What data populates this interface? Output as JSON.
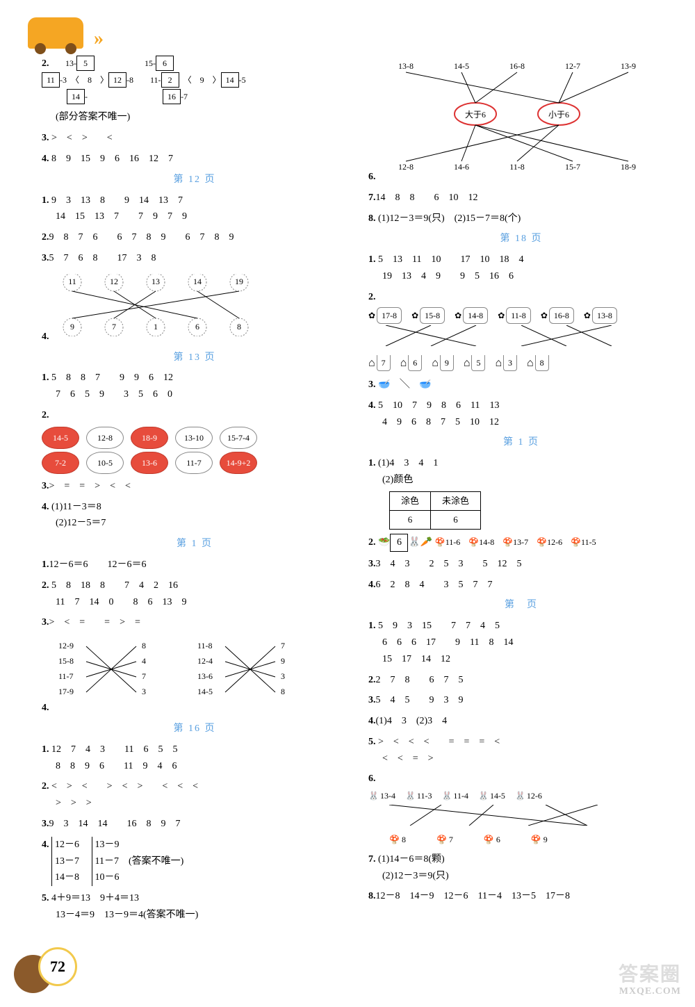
{
  "page_number": "72",
  "watermark": {
    "big": "答案圈",
    "small": "MXQE.COM"
  },
  "left": {
    "q2": {
      "num": "2.",
      "top": [
        "13-",
        "5"
      ],
      "mids": [
        [
          "11",
          "-3",
          "8",
          "12",
          "-8",
          "11-",
          "2",
          "9",
          "14",
          "-5",
          "15-",
          "6"
        ],
        [
          "14",
          "-",
          "",
          "",
          "",
          "",
          "",
          "",
          "16",
          "-7"
        ]
      ],
      "note": "(部分答案不唯一)"
    },
    "q3": {
      "num": "3.",
      "vals": [
        ">",
        "<",
        ">",
        "<"
      ]
    },
    "q4": {
      "num": "4.",
      "vals": [
        "8",
        "9",
        "15",
        "9",
        "6",
        "16",
        "12",
        "7"
      ]
    },
    "ph12": "第 12 页",
    "p12_1": {
      "num": "1.",
      "r1": [
        "9",
        "3",
        "13",
        "8",
        "",
        "9",
        "14",
        "13",
        "7"
      ],
      "r2": [
        "14",
        "15",
        "13",
        "7",
        "",
        "7",
        "9",
        "7",
        "9"
      ]
    },
    "p12_2": {
      "num": "2.",
      "vals": [
        "9",
        "8",
        "7",
        "6",
        "",
        "6",
        "7",
        "8",
        "9",
        "",
        "6",
        "7",
        "8",
        "9"
      ]
    },
    "p12_3": {
      "num": "3.",
      "vals": [
        "5",
        "7",
        "6",
        "8",
        "",
        "17",
        "3",
        "8"
      ]
    },
    "p12_4": {
      "num": "4.",
      "top": [
        "11",
        "12",
        "13",
        "14",
        "19"
      ],
      "bot": [
        "9",
        "7",
        "1",
        "6",
        "8"
      ]
    },
    "ph13": "第 13 页",
    "p13_1": {
      "num": "1.",
      "r1": [
        "5",
        "8",
        "8",
        "7",
        "",
        "9",
        "9",
        "6",
        "12"
      ],
      "r2": [
        "7",
        "6",
        "5",
        "9",
        "",
        "3",
        "5",
        "6",
        "0"
      ]
    },
    "p13_2": {
      "num": "2.",
      "row1": [
        {
          "t": "14-5",
          "red": true
        },
        {
          "t": "12-8"
        },
        {
          "t": "18-9",
          "red": true
        },
        {
          "t": "13-10"
        },
        {
          "t": "15-7-4"
        }
      ],
      "row2": [
        {
          "t": "7-2",
          "red": true
        },
        {
          "t": "10-5"
        },
        {
          "t": "13-6",
          "red": true
        },
        {
          "t": "11-7"
        },
        {
          "t": "14-9+2",
          "red": true
        }
      ]
    },
    "p13_3": {
      "num": "3.",
      "vals": [
        ">",
        "=",
        "=",
        ">",
        "<",
        "<"
      ]
    },
    "p13_4": {
      "num": "4.",
      "a": "(1)11－3＝8",
      "b": "(2)12－5＝7"
    },
    "ph14": "第 1  页",
    "p14_1": {
      "num": "1.",
      "vals": [
        "12－6＝6",
        "",
        "12－6＝6"
      ]
    },
    "p14_2": {
      "num": "2.",
      "r1": [
        "5",
        "8",
        "18",
        "8",
        "",
        "7",
        "4",
        "2",
        "16"
      ],
      "r2": [
        "11",
        "7",
        "14",
        "0",
        "",
        "8",
        "6",
        "13",
        "9"
      ]
    },
    "p14_3": {
      "num": "3.",
      "vals": [
        ">",
        "<",
        "=",
        "",
        "=",
        ">",
        "="
      ]
    },
    "p14_4": {
      "num": "4.",
      "left": [
        [
          "12-9",
          "8"
        ],
        [
          "15-8",
          "4"
        ],
        [
          "11-7",
          "7"
        ],
        [
          "17-9",
          "3"
        ]
      ],
      "right": [
        [
          "11-8",
          "7"
        ],
        [
          "12-4",
          "9"
        ],
        [
          "13-6",
          "3"
        ],
        [
          "14-5",
          "8"
        ]
      ]
    },
    "ph16": "第 16 页",
    "p16_1": {
      "num": "1.",
      "r1": [
        "12",
        "7",
        "4",
        "3",
        "",
        "11",
        "6",
        "5",
        "5"
      ],
      "r2": [
        "8",
        "8",
        "9",
        "6",
        "",
        "11",
        "9",
        "4",
        "6"
      ]
    },
    "p16_2": {
      "num": "2.",
      "r1": [
        "<",
        ">",
        "<",
        "",
        ">",
        "<",
        ">",
        "",
        "<",
        "<",
        "<"
      ],
      "r2": [
        ">",
        ">",
        ">"
      ]
    },
    "p16_3": {
      "num": "3.",
      "vals": [
        "9",
        "3",
        "14",
        "14",
        "",
        "16",
        "8",
        "9",
        "7"
      ]
    },
    "p16_4": {
      "num": "4.",
      "left": [
        "12－6",
        "13－7",
        "14－8"
      ],
      "right": [
        "13－9",
        "11－7",
        "10－6"
      ],
      "note": "(答案不唯一)"
    },
    "p16_5": {
      "num": "5.",
      "a": "4＋9＝13　9＋4＝13",
      "b": "13－4＝9　13－9＝4(答案不唯一)"
    }
  },
  "right": {
    "q6": {
      "num": "6.",
      "top": [
        "13-8",
        "14-5",
        "16-8",
        "12-7",
        "13-9"
      ],
      "mid": [
        "大于6",
        "小于6"
      ],
      "bot": [
        "12-8",
        "14-6",
        "11-8",
        "15-7",
        "18-9"
      ]
    },
    "q7": {
      "num": "7.",
      "vals": [
        "14",
        "8",
        "8",
        "",
        "6",
        "10",
        "12"
      ]
    },
    "q8": {
      "num": "8.",
      "a": "(1)12－3＝9(只)",
      "b": "(2)15－7＝8(个)"
    },
    "ph18": "第 18 页",
    "p18_1": {
      "num": "1.",
      "r1": [
        "5",
        "13",
        "11",
        "10",
        "",
        "17",
        "10",
        "18",
        "4"
      ],
      "r2": [
        "19",
        "13",
        "4",
        "9",
        "",
        "9",
        "5",
        "16",
        "6"
      ]
    },
    "p18_2": {
      "num": "2.",
      "top": [
        "17-8",
        "15-8",
        "14-8",
        "11-8",
        "16-8",
        "13-8"
      ],
      "bot": [
        "7",
        "6",
        "9",
        "5",
        "3",
        "8"
      ]
    },
    "p18_3": {
      "num": "3."
    },
    "p18_4": {
      "num": "4.",
      "r1": [
        "5",
        "10",
        "7",
        "9",
        "8",
        "6",
        "11",
        "13"
      ],
      "r2": [
        "4",
        "9",
        "6",
        "8",
        "7",
        "5",
        "10",
        "12"
      ]
    },
    "ph_next": "第 1  页",
    "pn_1": {
      "num": "1.",
      "a": "(1)4　3　4　1",
      "b": "(2)颜色",
      "th": [
        "涂色",
        "未涂色"
      ],
      "td": [
        "6",
        "6"
      ]
    },
    "pn_2": {
      "num": "2.",
      "bowl": "6",
      "items": [
        "11-6",
        "14-8",
        "13-7",
        "12-6",
        "11-5"
      ]
    },
    "pn_3": {
      "num": "3.",
      "vals": [
        "3",
        "4",
        "3",
        "",
        "2",
        "5",
        "3",
        "",
        "5",
        "12",
        "5"
      ]
    },
    "pn_4": {
      "num": "4.",
      "vals": [
        "6",
        "2",
        "8",
        "4",
        "",
        "3",
        "5",
        "7",
        "7"
      ]
    },
    "ph_blank": "第　页",
    "pb_1": {
      "num": "1.",
      "r1": [
        "5",
        "9",
        "3",
        "15",
        "",
        "7",
        "7",
        "4",
        "5"
      ],
      "r2": [
        "6",
        "6",
        "6",
        "17",
        "",
        "9",
        "11",
        "8",
        "14"
      ],
      "r3": [
        "15",
        "17",
        "14",
        "12"
      ]
    },
    "pb_2": {
      "num": "2.",
      "vals": [
        "2",
        "7",
        "8",
        "",
        "6",
        "7",
        "5"
      ]
    },
    "pb_3": {
      "num": "3.",
      "vals": [
        "5",
        "4",
        "5",
        "",
        "9",
        "3",
        "9"
      ]
    },
    "pb_4": {
      "num": "4.",
      "text": "(1)4　3　(2)3　4"
    },
    "pb_5": {
      "num": "5.",
      "r1": [
        ">",
        "<",
        "<",
        "<",
        "",
        "=",
        "=",
        "=",
        "<"
      ],
      "r2": [
        "<",
        "<",
        "=",
        ">"
      ]
    },
    "pb_6": {
      "num": "6.",
      "top": [
        "13-4",
        "11-3",
        "11-4",
        "14-5",
        "12-6"
      ],
      "bot": [
        "8",
        "7",
        "6",
        "9"
      ]
    },
    "pb_7": {
      "num": "7.",
      "a": "(1)14－6＝8(颗)",
      "b": "(2)12－3＝9(只)"
    },
    "pb_8": {
      "num": "8.",
      "vals": [
        "12－8",
        "14－9",
        "12－6",
        "11－4",
        "13－5",
        "17－8"
      ]
    }
  }
}
